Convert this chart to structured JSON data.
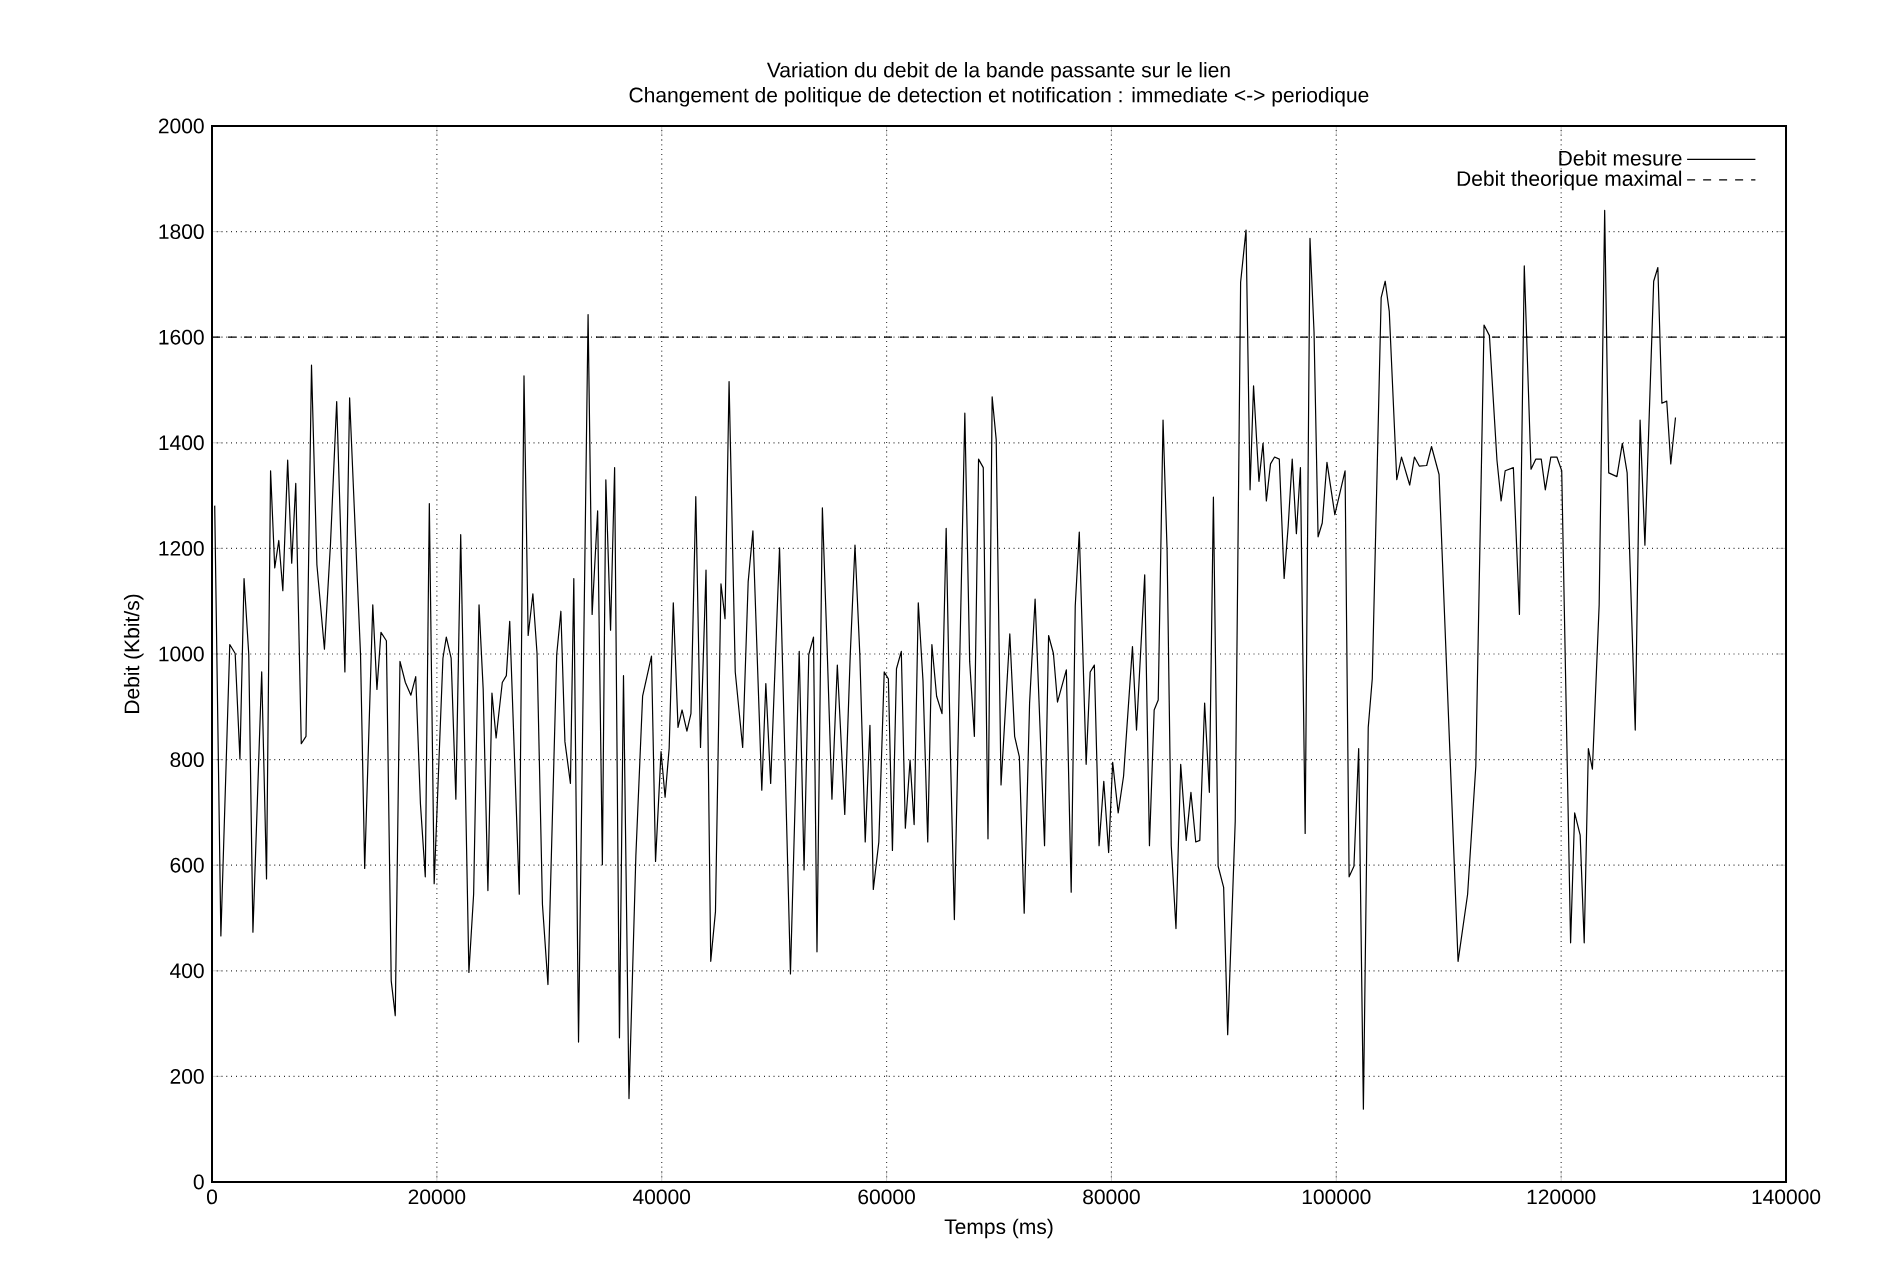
{
  "chart_data": {
    "type": "line",
    "title": "Variation du debit de la bande passante sur le lien",
    "subtitle": "Changement de politique de detection et notification : immediate <-> periodique",
    "xlabel": "Temps (ms)",
    "ylabel": "Debit (Kbit/s)",
    "xlim": [
      0,
      140000
    ],
    "ylim": [
      0,
      2000
    ],
    "xticks": [
      0,
      20000,
      40000,
      60000,
      80000,
      100000,
      120000,
      140000
    ],
    "yticks": [
      0,
      200,
      400,
      600,
      800,
      1000,
      1200,
      1400,
      1600,
      1800,
      2000
    ],
    "grid": true,
    "legend": "top right",
    "marker": "none",
    "series": [
      {
        "name": "Debit mesure",
        "color": "#000000",
        "line_style": "solid",
        "x": [
          240,
          790,
          1580,
          2060,
          2485,
          2850,
          3270,
          3640,
          4420,
          4850,
          5210,
          5580,
          5940,
          6300,
          6730,
          7090,
          7450,
          7940,
          8360,
          8850,
          9330,
          10000,
          10540,
          11090,
          11820,
          12240,
          12790,
          13210,
          13580,
          14300,
          14670,
          15030,
          15510,
          15940,
          16300,
          16720,
          17200,
          17690,
          18120,
          18540,
          18970,
          19330,
          19760,
          20540,
          20840,
          21270,
          21690,
          22120,
          22850,
          23270,
          23750,
          24120,
          24540,
          24900,
          25270,
          25820,
          26180,
          26480,
          27330,
          27750,
          28120,
          28540,
          28910,
          29390,
          29880,
          30660,
          31030,
          31390,
          31880,
          32180,
          32600,
          33450,
          33810,
          34300,
          34720,
          35030,
          35450,
          35810,
          36240,
          36600,
          37090,
          37700,
          38300,
          39090,
          39450,
          39940,
          40300,
          40660,
          41030,
          41450,
          41810,
          42240,
          42600,
          43030,
          43450,
          43940,
          44360,
          44780,
          45270,
          45630,
          45990,
          46540,
          47200,
          47690,
          48110,
          48900,
          49260,
          49690,
          50480,
          51450,
          52230,
          52660,
          53080,
          53500,
          53810,
          54290,
          54710,
          55140,
          55620,
          56280,
          56770,
          57190,
          57620,
          58100,
          58520,
          58820,
          59310,
          59790,
          60160,
          60520,
          60880,
          61310,
          61670,
          62090,
          62450,
          62820,
          63240,
          63660,
          64030,
          64450,
          64930,
          65300,
          65660,
          66030,
          66960,
          67390,
          67810,
          68180,
          68600,
          69020,
          69390,
          69750,
          70180,
          70960,
          71390,
          71810,
          72240,
          72720,
          73210,
          74050,
          74410,
          74840,
          75200,
          75990,
          76420,
          76780,
          77140,
          77750,
          78110,
          78480,
          78900,
          79320,
          79750,
          80110,
          80600,
          81080,
          81870,
          82230,
          82960,
          83380,
          83800,
          84160,
          84590,
          84950,
          85320,
          85740,
          86160,
          86650,
          87070,
          87500,
          87860,
          88290,
          88710,
          89070,
          89490,
          89980,
          90340,
          91010,
          91490,
          91970,
          92330,
          92640,
          93120,
          93480,
          93780,
          94150,
          94510,
          94930,
          95360,
          95720,
          96080,
          96450,
          96810,
          97230,
          97660,
          98020,
          98380,
          98750,
          99170,
          99870,
          100780,
          101140,
          101570,
          101990,
          102410,
          102840,
          103200,
          103990,
          104350,
          104710,
          105380,
          105800,
          106530,
          106950,
          107380,
          108040,
          108470,
          109140,
          110830,
          111680,
          112410,
          113140,
          113620,
          114290,
          114660,
          115020,
          115750,
          116290,
          116720,
          117320,
          117740,
          118230,
          118590,
          119080,
          119620,
          120050,
          120840,
          121200,
          121690,
          122050,
          122420,
          122780,
          123380,
          123870,
          124230,
          124960,
          125440,
          125870,
          126590,
          127020,
          127450,
          128230,
          128600,
          128960,
          129390,
          129750,
          130170
        ],
        "values": [
          1281,
          466,
          1018,
          1001,
          801,
          1143,
          999,
          473,
          966,
          574,
          1347,
          1163,
          1215,
          1120,
          1367,
          1172,
          1323,
          830,
          844,
          1547,
          1169,
          1009,
          1209,
          1478,
          966,
          1485,
          1209,
          999,
          594,
          1093,
          933,
          1041,
          1025,
          381,
          315,
          986,
          946,
          922,
          957,
          716,
          578,
          1285,
          565,
          992,
          1032,
          992,
          725,
          1226,
          397,
          545,
          1093,
          933,
          552,
          926,
          841,
          946,
          959,
          1062,
          545,
          1527,
          1035,
          1114,
          1001,
          526,
          374,
          999,
          1081,
          834,
          755,
          1143,
          265,
          1643,
          1075,
          1271,
          601,
          1330,
          1045,
          1353,
          273,
          959,
          158,
          618,
          920,
          996,
          607,
          815,
          729,
          821,
          1097,
          861,
          894,
          854,
          887,
          1298,
          823,
          1159,
          418,
          512,
          1133,
          1067,
          1516,
          966,
          823,
          1137,
          1233,
          742,
          944,
          755,
          1201,
          394,
          1005,
          591,
          999,
          1032,
          436,
          1277,
          1012,
          725,
          979,
          696,
          999,
          1206,
          999,
          644,
          865,
          554,
          644,
          966,
          953,
          628,
          972,
          1005,
          670,
          799,
          677,
          1097,
          949,
          644,
          1018,
          920,
          887,
          1238,
          828,
          497,
          1456,
          986,
          844,
          1369,
          1353,
          650,
          1487,
          1406,
          752,
          1038,
          844,
          805,
          509,
          907,
          1104,
          637,
          1035,
          1001,
          909,
          970,
          549,
          1091,
          1231,
          791,
          966,
          979,
          637,
          759,
          624,
          795,
          699,
          769,
          1014,
          856,
          1150,
          637,
          894,
          913,
          1443,
          1196,
          637,
          480,
          791,
          647,
          738,
          644,
          647,
          907,
          738,
          1297,
          598,
          558,
          279,
          683,
          1704,
          1803,
          1311,
          1508,
          1327,
          1399,
          1290,
          1360,
          1373,
          1369,
          1143,
          1242,
          1369,
          1228,
          1353,
          660,
          1787,
          1610,
          1222,
          1248,
          1363,
          1264,
          1347,
          578,
          598,
          821,
          138,
          861,
          953,
          1675,
          1706,
          1649,
          1330,
          1373,
          1320,
          1373,
          1356,
          1357,
          1393,
          1340,
          418,
          545,
          788,
          1623,
          1603,
          1367,
          1290,
          1347,
          1353,
          1075,
          1735,
          1350,
          1369,
          1369,
          1311,
          1373,
          1373,
          1347,
          453,
          699,
          657,
          453,
          821,
          782,
          1093,
          1840,
          1343,
          1336,
          1399,
          1343,
          856,
          1443,
          1206,
          1706,
          1732,
          1475,
          1479,
          1360,
          1448
        ]
      },
      {
        "name": "Debit theorique maximal",
        "color": "#000000",
        "line_style": "dashed",
        "x": [
          0,
          140000
        ],
        "values": [
          1600,
          1600
        ]
      }
    ]
  }
}
